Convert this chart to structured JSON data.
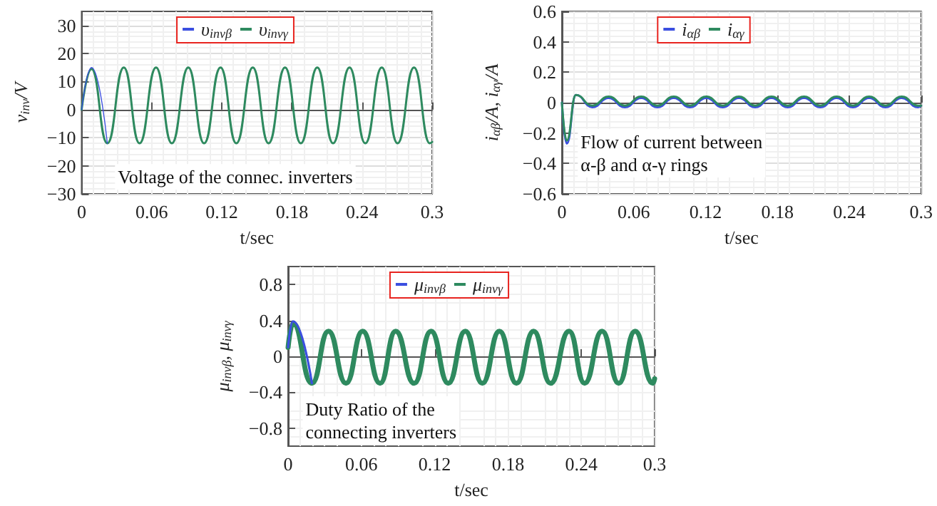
{
  "chart_data": [
    {
      "type": "line",
      "xlabel": "t/sec",
      "ylabel": "v$_{inv}$/V",
      "annotations": [
        "Voltage of the connec. inverters"
      ],
      "xlim": [
        0,
        0.3
      ],
      "xticks": [
        0,
        0.06,
        0.12,
        0.18,
        0.24,
        0.3
      ],
      "ylim": [
        -30,
        35
      ],
      "yticks": [
        -30,
        -20,
        -10,
        0,
        10,
        20,
        30
      ],
      "grid": true,
      "legend": "top",
      "line_style": "solid",
      "marker": "none",
      "x": [
        0,
        0.0085,
        0.022,
        0.0361,
        0.0496,
        0.0637,
        0.0772,
        0.0913,
        0.1048,
        0.1189,
        0.1324,
        0.1465,
        0.16,
        0.1741,
        0.1876,
        0.2017,
        0.2152,
        0.2293,
        0.2428,
        0.2569,
        0.2704,
        0.2845,
        0.298,
        0.3
      ],
      "series": [
        {
          "name": "υ$_{invβ}$",
          "color": "#3b4fe0",
          "values": [
            0,
            15,
            -12,
            null,
            null,
            null,
            null,
            null,
            null,
            null,
            null,
            null,
            null,
            null,
            null,
            null,
            null,
            null,
            null,
            null,
            null,
            null,
            null,
            null
          ]
        },
        {
          "name": "υ$_{invγ}$",
          "color": "#2e8a5f",
          "values": [
            0,
            14.5,
            -12,
            15,
            -12,
            15,
            -12,
            15,
            -12,
            15,
            -12,
            15,
            -12,
            15,
            -12,
            15,
            -12,
            15,
            -12,
            15,
            -12,
            15,
            -12,
            -11.5
          ]
        }
      ]
    },
    {
      "type": "line",
      "xlabel": "t/sec",
      "ylabel": "i$_{αβ}$/A, i$_{αγ}$/A",
      "annotations": [
        "Flow of current between",
        "α-β and α-γ rings"
      ],
      "xlim": [
        0,
        0.3
      ],
      "xticks": [
        0,
        0.06,
        0.12,
        0.18,
        0.24,
        0.3
      ],
      "ylim": [
        -0.6,
        0.6
      ],
      "yticks": [
        -0.6,
        -0.4,
        -0.2,
        0,
        0.2,
        0.4,
        0.6
      ],
      "grid": true,
      "legend": "top",
      "line_style": "solid",
      "marker": "none",
      "x": [
        0,
        0.004,
        0.0117,
        0.0254,
        0.039,
        0.0526,
        0.0662,
        0.0798,
        0.0934,
        0.107,
        0.1206,
        0.1342,
        0.1478,
        0.1614,
        0.175,
        0.1886,
        0.2022,
        0.2158,
        0.2294,
        0.243,
        0.2566,
        0.2702,
        0.2838,
        0.2974,
        0.3
      ],
      "series": [
        {
          "name": "i$_{αβ}$",
          "color": "#3b4fe0",
          "values": [
            0,
            -0.27,
            0.05,
            -0.03,
            0.03,
            -0.03,
            0.03,
            -0.03,
            0.03,
            -0.03,
            0.03,
            -0.03,
            0.03,
            -0.03,
            0.03,
            -0.03,
            0.03,
            -0.03,
            0.03,
            -0.03,
            0.03,
            -0.03,
            0.03,
            -0.03,
            -0.02
          ]
        },
        {
          "name": "i$_{αγ}$",
          "color": "#2e8a5f",
          "values": [
            0,
            -0.25,
            0.05,
            -0.02,
            0.04,
            -0.02,
            0.04,
            -0.02,
            0.04,
            -0.02,
            0.04,
            -0.02,
            0.04,
            -0.02,
            0.04,
            -0.02,
            0.04,
            -0.02,
            0.04,
            -0.02,
            0.04,
            -0.02,
            0.04,
            -0.02,
            -0.02
          ]
        }
      ]
    },
    {
      "type": "line",
      "xlabel": "t/sec",
      "ylabel": "μ$_{invβ}$, μ$_{invγ}$",
      "annotations": [
        "Duty Ratio of the",
        "connecting inverters"
      ],
      "xlim": [
        0,
        0.3
      ],
      "xticks": [
        0,
        0.06,
        0.12,
        0.18,
        0.24,
        0.3
      ],
      "ylim": [
        -1,
        1
      ],
      "yticks": [
        -0.8,
        -0.4,
        0,
        0.4,
        0.8
      ],
      "grid": true,
      "legend": "top",
      "line_style": "solid",
      "marker": "none",
      "x": [
        0,
        0.004,
        0.0195,
        0.033,
        0.0474,
        0.061,
        0.0753,
        0.088,
        0.1032,
        0.117,
        0.1311,
        0.145,
        0.159,
        0.173,
        0.1869,
        0.201,
        0.2148,
        0.23,
        0.2427,
        0.257,
        0.2706,
        0.284,
        0.2985,
        0.3
      ],
      "series": [
        {
          "name": "μ$_{invβ}$",
          "color": "#3b4fe0",
          "values": [
            0.1,
            0.39,
            -0.3,
            null,
            null,
            null,
            null,
            null,
            null,
            null,
            null,
            null,
            null,
            null,
            null,
            null,
            null,
            null,
            null,
            null,
            null,
            null,
            null,
            null
          ]
        },
        {
          "name": "μ$_{invγ}$",
          "color": "#2e8a5f",
          "values": [
            0.1,
            0.37,
            -0.3,
            0.28,
            -0.3,
            0.28,
            -0.3,
            0.28,
            -0.3,
            0.28,
            -0.3,
            0.28,
            -0.3,
            0.28,
            -0.3,
            0.28,
            -0.3,
            0.28,
            -0.3,
            0.28,
            -0.3,
            0.28,
            -0.3,
            -0.25
          ]
        }
      ]
    }
  ]
}
